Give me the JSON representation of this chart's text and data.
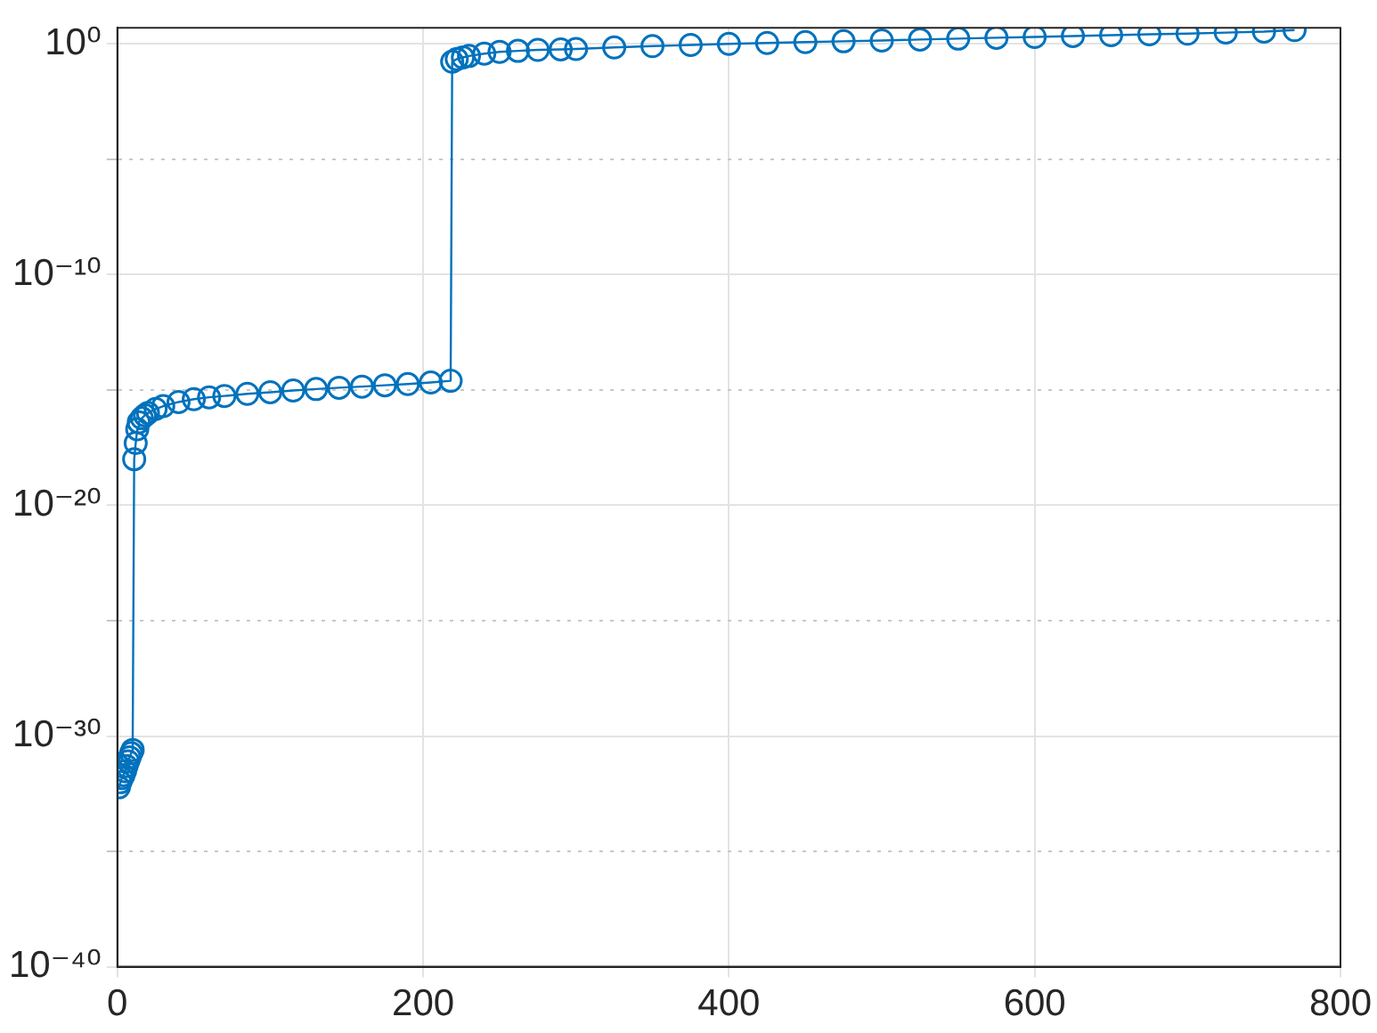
{
  "chart_data": {
    "type": "line",
    "marker": "circle",
    "line_style": "solid",
    "grid": true,
    "log": "y",
    "xlim": [
      0,
      800
    ],
    "xticks": [
      0,
      200,
      400,
      600,
      800
    ],
    "ylim": [
      1e-40,
      5
    ],
    "yticks": [
      {
        "value": 1e-40,
        "label": "10⁻⁴⁰"
      },
      {
        "value": 1e-35,
        "label": null
      },
      {
        "value": 1e-30,
        "label": "10⁻³⁰"
      },
      {
        "value": 1e-25,
        "label": null
      },
      {
        "value": 1e-20,
        "label": "10⁻²⁰"
      },
      {
        "value": 1e-15,
        "label": null
      },
      {
        "value": 1e-10,
        "label": "10⁻¹⁰"
      },
      {
        "value": 1e-05,
        "label": null
      },
      {
        "value": 1,
        "label": "10⁰"
      }
    ],
    "x": [
      1,
      2,
      3,
      4,
      5,
      6,
      7,
      8,
      9,
      10,
      11,
      12,
      13,
      14,
      16,
      18,
      20,
      25,
      30,
      40,
      50,
      60,
      70,
      85,
      100,
      115,
      130,
      145,
      160,
      175,
      190,
      205,
      218,
      219,
      222,
      226,
      230,
      240,
      250,
      262,
      275,
      290,
      300,
      325,
      350,
      375,
      400,
      425,
      450,
      475,
      500,
      525,
      550,
      575,
      600,
      625,
      650,
      675,
      700,
      725,
      750,
      770
    ],
    "series": [
      {
        "color": "#0072bd",
        "values": [
          6e-33,
          1e-32,
          1.5e-32,
          2e-32,
          3e-32,
          5e-32,
          8e-32,
          1.2e-31,
          1.8e-31,
          2.5e-31,
          1e-18,
          5e-18,
          2e-17,
          4e-17,
          6e-17,
          8e-17,
          1e-16,
          1.5e-16,
          2e-16,
          3e-16,
          4e-16,
          4.8e-16,
          5.5e-16,
          6.8e-16,
          8e-16,
          9.5e-16,
          1.1e-15,
          1.25e-15,
          1.4e-15,
          1.6e-15,
          1.8e-15,
          2.1e-15,
          2.5e-15,
          0.17,
          0.22,
          0.26,
          0.3,
          0.38,
          0.45,
          0.5,
          0.55,
          0.58,
          0.6,
          0.7,
          0.8,
          0.9,
          1,
          1.1,
          1.2,
          1.3,
          1.4,
          1.55,
          1.7,
          1.85,
          2,
          2.2,
          2.4,
          2.6,
          2.8,
          3.1,
          3.4,
          4
        ]
      }
    ]
  }
}
